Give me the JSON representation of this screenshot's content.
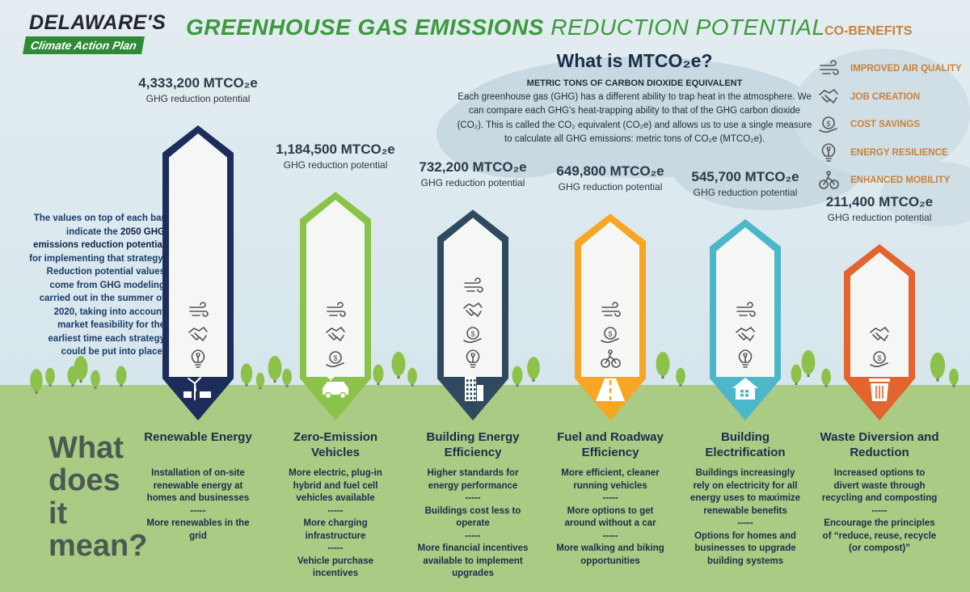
{
  "logo": {
    "line1": "DELAWARE'S",
    "line2": "Climate Action Plan"
  },
  "title": {
    "part1": "GREENHOUSE GAS EMISSIONS",
    "part2": " REDUCTION POTENTIAL"
  },
  "mtco": {
    "question": "What is MTCO₂e?",
    "subtitle": "METRIC TONS OF CARBON DIOXIDE EQUIVALENT",
    "body": "Each greenhouse gas (GHG) has a different ability to trap heat in the atmosphere. We can compare each GHG's heat-trapping ability to that of the GHG carbon dioxide (CO₂). This is called the CO₂ equivalent (CO₂e) and allows us to use a single measure to calculate all GHG emissions: metric tons of CO₂e (MTCO₂e)."
  },
  "co_benefits": {
    "title": "CO-BENEFITS",
    "items": [
      {
        "label": "IMPROVED AIR QUALITY",
        "icon": "wind-icon"
      },
      {
        "label": "JOB CREATION",
        "icon": "handshake-icon"
      },
      {
        "label": "COST SAVINGS",
        "icon": "coin-icon"
      },
      {
        "label": "ENERGY RESILIENCE",
        "icon": "lightbulb-icon"
      },
      {
        "label": "ENHANCED MOBILITY",
        "icon": "cyclist-icon"
      }
    ]
  },
  "note": {
    "pre": "The values on top of each bar indicate the ",
    "bold": "2050 GHG emissions reduction potential",
    "post": " for implementing that strategy. Reduction potential values come from GHG modeling carried out in the summer of 2020, taking into account market feasibility for the earliest time each strategy could be put into place."
  },
  "what_does_it_mean": "What does it mean?",
  "colors": {
    "navy": "#1c2d5c",
    "lime": "#8bc34a",
    "slate": "#2f4a5e",
    "orange": "#f7a623",
    "teal": "#4bb7c8",
    "red": "#e2642e"
  },
  "chart_data": {
    "type": "bar",
    "unit": "MTCO₂e",
    "value_caption": "GHG reduction potential",
    "categories": [
      "Renewable Energy",
      "Zero-Emission Vehicles",
      "Building Energy Efficiency",
      "Fuel and Roadway Efficiency",
      "Building Electrification",
      "Waste Diversion and Reduction"
    ],
    "values": [
      4333200,
      1184500,
      732200,
      649800,
      545700,
      211400
    ],
    "value_labels": [
      "4,333,200",
      "1,184,500",
      "732,200",
      "649,800",
      "545,700",
      "211,400"
    ]
  },
  "strategies": [
    {
      "name": "Renewable Energy",
      "color": "#1c2d5c",
      "bottom_icon": "wind-solar-icon",
      "benefit_icons": [
        "wind-icon",
        "handshake-icon",
        "lightbulb-icon"
      ],
      "desc": [
        "Installation of on-site renewable energy at homes and businesses",
        "-----",
        "More renewables in the grid"
      ]
    },
    {
      "name": "Zero-Emission Vehicles",
      "color": "#8bc34a",
      "bottom_icon": "electric-car-icon",
      "benefit_icons": [
        "wind-icon",
        "handshake-icon",
        "coin-icon"
      ],
      "desc": [
        "More electric, plug-in hybrid and fuel cell vehicles available",
        "-----",
        "More charging infrastructure",
        "-----",
        "Vehicle purchase incentives"
      ]
    },
    {
      "name": "Building Energy Efficiency",
      "color": "#2f4a5e",
      "bottom_icon": "building-icon",
      "benefit_icons": [
        "wind-icon",
        "handshake-icon",
        "coin-icon",
        "lightbulb-icon"
      ],
      "desc": [
        "Higher standards for energy performance",
        "-----",
        "Buildings cost less to operate",
        "-----",
        "More financial incentives available to implement upgrades"
      ]
    },
    {
      "name": "Fuel and Roadway Efficiency",
      "color": "#f7a623",
      "bottom_icon": "road-icon",
      "benefit_icons": [
        "wind-icon",
        "coin-icon",
        "cyclist-icon"
      ],
      "desc": [
        "More efficient, cleaner running vehicles",
        "-----",
        "More options to get around without a car",
        "-----",
        "More walking and biking opportunities"
      ]
    },
    {
      "name": "Building Electrification",
      "color": "#4bb7c8",
      "bottom_icon": "electric-house-icon",
      "benefit_icons": [
        "wind-icon",
        "handshake-icon",
        "lightbulb-icon"
      ],
      "desc": [
        "Buildings increasingly rely on electricity for all energy uses to maximize renewable benefits",
        "-----",
        "Options for homes and businesses to upgrade building systems"
      ]
    },
    {
      "name": "Waste Diversion and Reduction",
      "color": "#e2642e",
      "bottom_icon": "trash-can-icon",
      "benefit_icons": [
        "handshake-icon",
        "coin-icon"
      ],
      "desc": [
        "Increased options to divert waste through recycling and composting",
        "-----",
        "Encourage the principles of “reduce, reuse, recycle (or compost)”"
      ]
    }
  ]
}
